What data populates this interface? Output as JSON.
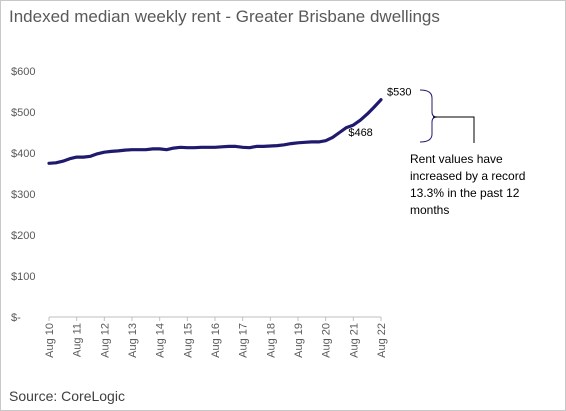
{
  "title": "Indexed median weekly rent - Greater Brisbane dwellings",
  "source": "Source: CoreLogic",
  "annotation": "Rent values have increased by a record 13.3% in the past 12 months",
  "colors": {
    "line": "#1f1a6e",
    "bracket": "#1f1a6e",
    "axis": "#bfbfbf"
  },
  "chart_data": {
    "type": "line",
    "title": "Indexed median weekly rent - Greater Brisbane dwellings",
    "xlabel": "",
    "ylabel": "",
    "ylim": [
      0,
      600
    ],
    "yticks": [
      0,
      100,
      200,
      300,
      400,
      500,
      600
    ],
    "ytick_labels": [
      "$-",
      "$100",
      "$200",
      "$300",
      "$400",
      "$500",
      "$600"
    ],
    "xticks": [
      "Aug 10",
      "Aug 11",
      "Aug 12",
      "Aug 13",
      "Aug 14",
      "Aug 15",
      "Aug 16",
      "Aug 17",
      "Aug 18",
      "Aug 19",
      "Aug 20",
      "Aug 21",
      "Aug 22"
    ],
    "grid": false,
    "series": [
      {
        "x": [
          "2010-08",
          "2010-11",
          "2011-02",
          "2011-05",
          "2011-08",
          "2011-11",
          "2012-02",
          "2012-05",
          "2012-08",
          "2012-11",
          "2013-02",
          "2013-05",
          "2013-08",
          "2013-11",
          "2014-02",
          "2014-05",
          "2014-08",
          "2014-11",
          "2015-02",
          "2015-05",
          "2015-08",
          "2015-11",
          "2016-02",
          "2016-05",
          "2016-08",
          "2016-11",
          "2017-02",
          "2017-05",
          "2017-08",
          "2017-11",
          "2018-02",
          "2018-05",
          "2018-08",
          "2018-11",
          "2019-02",
          "2019-05",
          "2019-08",
          "2019-11",
          "2020-02",
          "2020-05",
          "2020-08",
          "2020-11",
          "2021-02",
          "2021-05",
          "2021-08",
          "2021-11",
          "2022-02",
          "2022-05",
          "2022-08"
        ],
        "values": [
          375,
          376,
          380,
          386,
          390,
          390,
          392,
          398,
          402,
          404,
          405,
          407,
          408,
          408,
          408,
          410,
          410,
          408,
          412,
          414,
          413,
          413,
          414,
          414,
          414,
          415,
          416,
          416,
          414,
          413,
          416,
          416,
          417,
          418,
          420,
          423,
          425,
          426,
          427,
          427,
          430,
          438,
          450,
          462,
          468,
          480,
          495,
          512,
          530
        ]
      }
    ],
    "annotations": [
      {
        "label": "$530",
        "x": "2022-08",
        "y": 530
      },
      {
        "label": "$468",
        "x": "2021-08",
        "y": 468
      }
    ]
  }
}
